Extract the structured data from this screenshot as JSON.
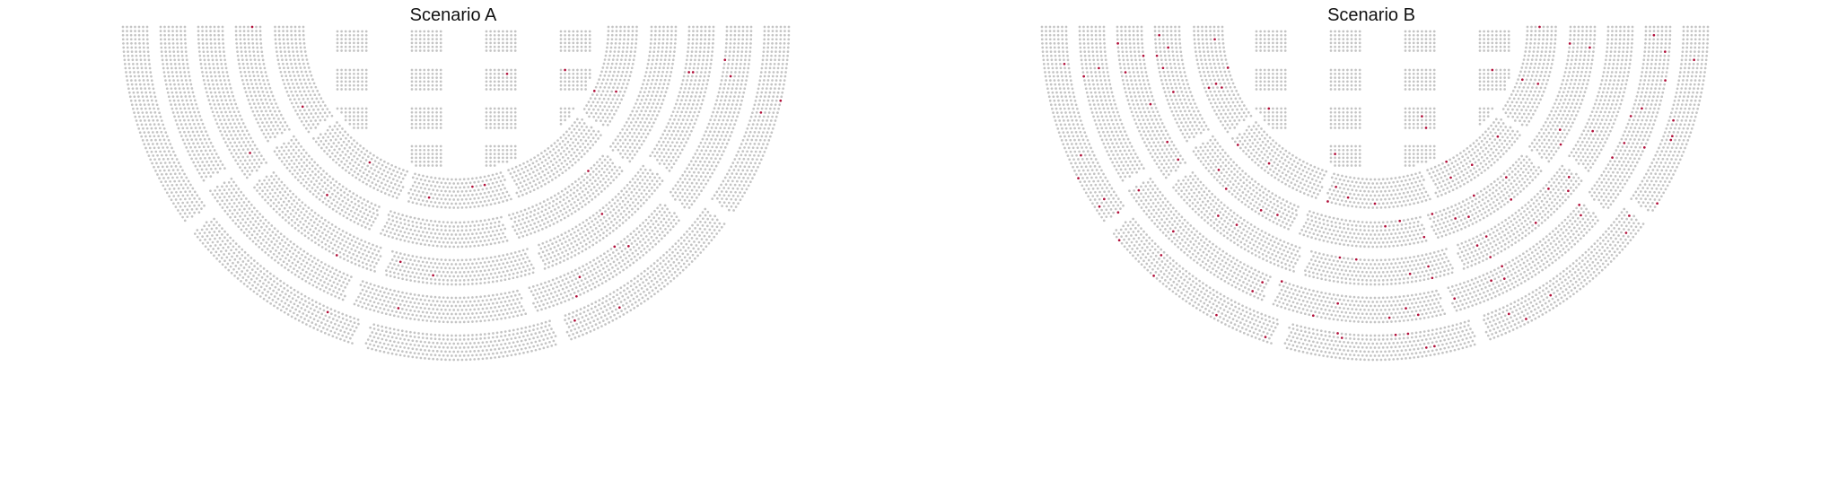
{
  "panels": [
    {
      "id": "a",
      "title": "Scenario A"
    },
    {
      "id": "b",
      "title": "Scenario B"
    }
  ],
  "colors": {
    "seat": "#c4c4c4",
    "highlight": "#b0103a",
    "background": "#ffffff"
  }
}
